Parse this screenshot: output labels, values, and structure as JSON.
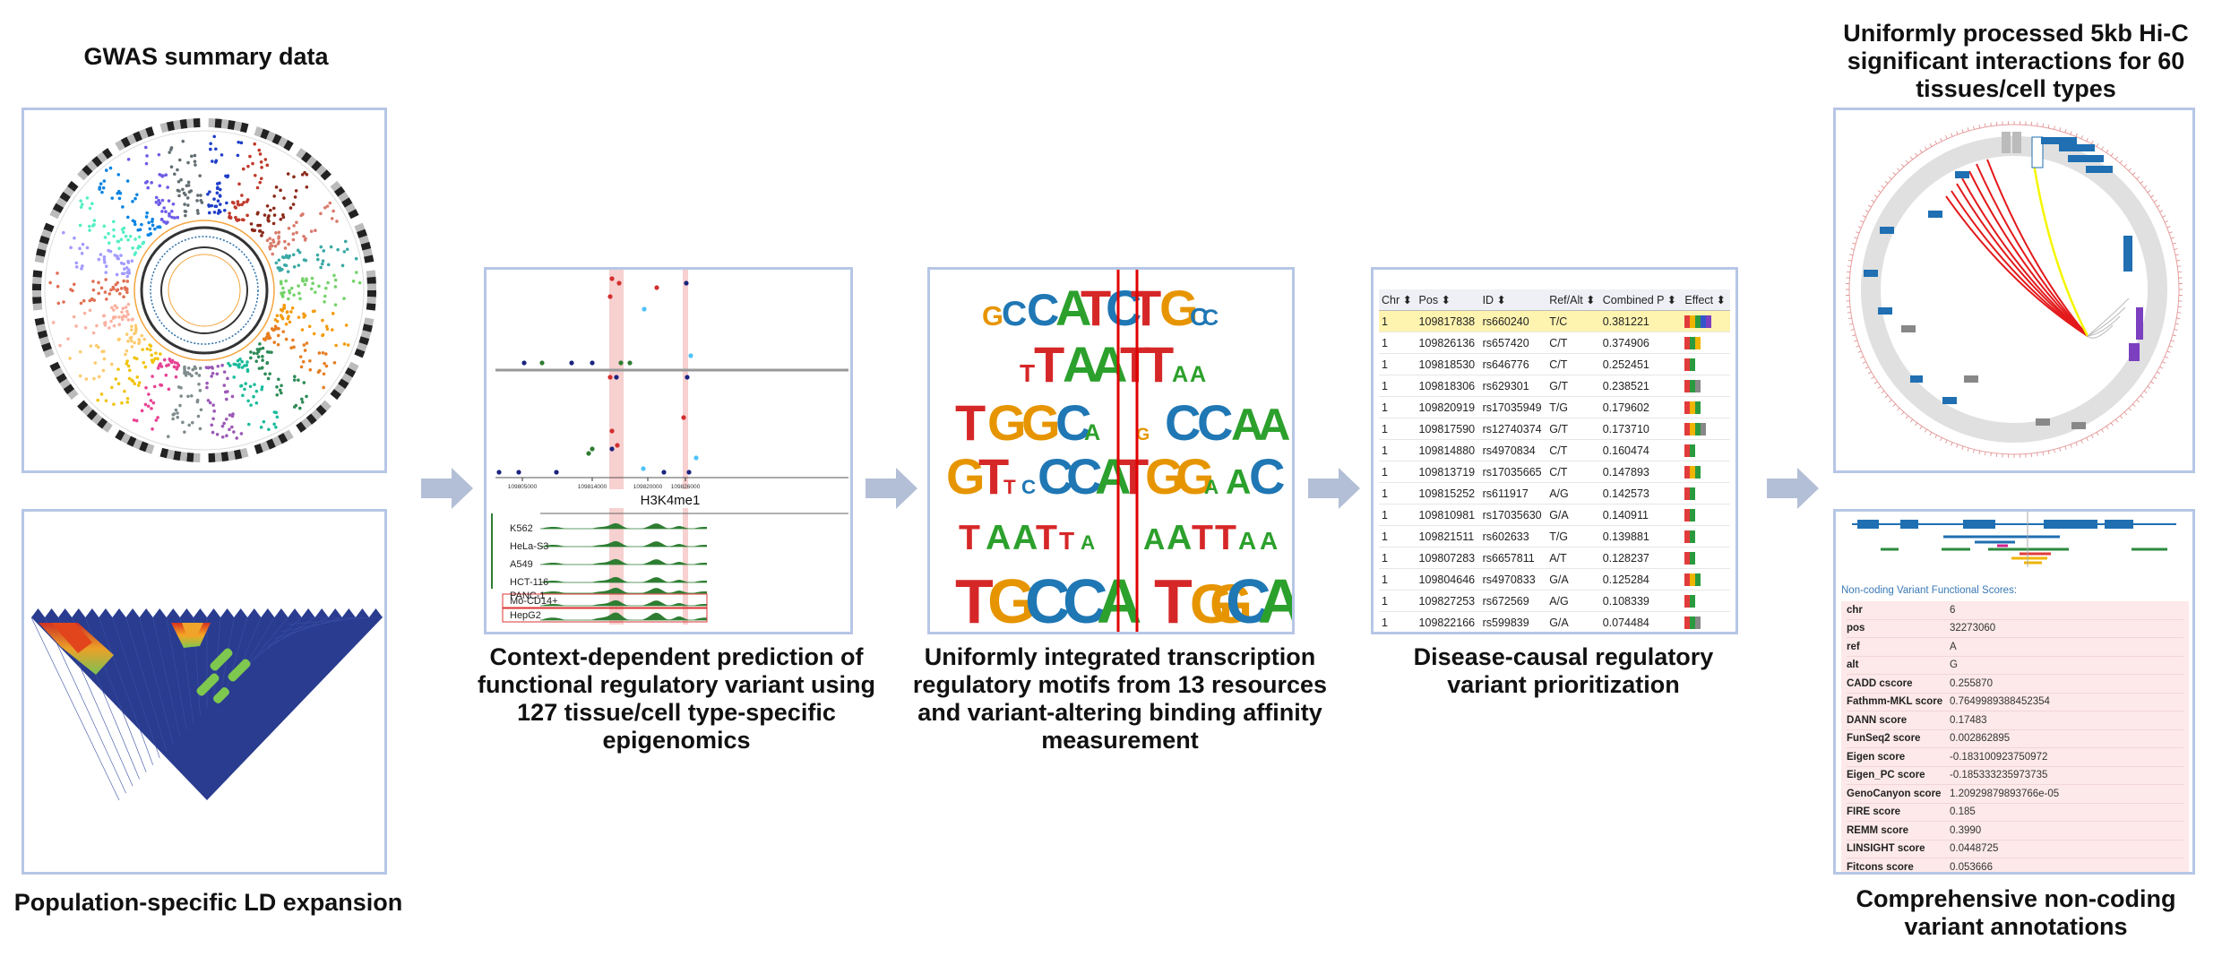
{
  "captions": {
    "gwas": "GWAS summary data",
    "ld": "Population-specific LD expansion",
    "epigenomics": [
      "Context-dependent prediction of",
      "functional regulatory variant using",
      "127 tissue/cell type-specific",
      "epigenomics"
    ],
    "motifs": [
      "Uniformly integrated transcription",
      "regulatory motifs from 13 resources",
      "and variant-altering binding affinity",
      "measurement"
    ],
    "prioritization": [
      "Disease-causal regulatory",
      "variant prioritization"
    ],
    "hic": [
      "Uniformly processed 5kb Hi-C",
      "significant interactions for 60",
      "tissues/cell types"
    ],
    "annotation": [
      "Comprehensive non-coding",
      "variant annotations"
    ]
  },
  "epigenomics_panel": {
    "mark_title": "H3K4me1",
    "axis_ticks_top": [
      "109805000",
      "109814000",
      "109820000",
      "109826000"
    ],
    "cell_lines": [
      "K562",
      "HeLa-S3",
      "A549",
      "HCT-116",
      "PANC-1",
      "Mo-CD14+",
      "HepG2"
    ]
  },
  "motif_panel": {
    "logos": [
      "GCCATCTGCC",
      "TTAATTAA",
      "TGGCA GCCAA",
      "GTTCCATGGAAC",
      "TAATTA AATTAA",
      "TGCCA TGGCA"
    ]
  },
  "variant_table": {
    "columns": [
      "Chr",
      "Pos",
      "ID",
      "Ref/Alt",
      "Combined P",
      "Effect"
    ],
    "rows": [
      [
        "1",
        "109817838",
        "rs660240",
        "T/C",
        "0.381221"
      ],
      [
        "1",
        "109826136",
        "rs657420",
        "C/T",
        "0.374906"
      ],
      [
        "1",
        "109818530",
        "rs646776",
        "C/T",
        "0.252451"
      ],
      [
        "1",
        "109818306",
        "rs629301",
        "G/T",
        "0.238521"
      ],
      [
        "1",
        "109820919",
        "rs17035949",
        "T/G",
        "0.179602"
      ],
      [
        "1",
        "109817590",
        "rs12740374",
        "G/T",
        "0.173710"
      ],
      [
        "1",
        "109814880",
        "rs4970834",
        "C/T",
        "0.160474"
      ],
      [
        "1",
        "109813719",
        "rs17035665",
        "C/T",
        "0.147893"
      ],
      [
        "1",
        "109815252",
        "rs611917",
        "A/G",
        "0.142573"
      ],
      [
        "1",
        "109810981",
        "rs17035630",
        "G/A",
        "0.140911"
      ],
      [
        "1",
        "109821511",
        "rs602633",
        "T/G",
        "0.139881"
      ],
      [
        "1",
        "109807283",
        "rs6657811",
        "A/T",
        "0.128237"
      ],
      [
        "1",
        "109804646",
        "rs4970833",
        "G/A",
        "0.125284"
      ],
      [
        "1",
        "109827253",
        "rs672569",
        "A/G",
        "0.108339"
      ],
      [
        "1",
        "109822166",
        "rs599839",
        "G/A",
        "0.074484"
      ]
    ]
  },
  "annotation_panel": {
    "title": "Non-coding Variant Functional Scores:",
    "rows": [
      [
        "chr",
        "6"
      ],
      [
        "pos",
        "32273060"
      ],
      [
        "ref",
        "A"
      ],
      [
        "alt",
        "G"
      ],
      [
        "CADD cscore",
        "0.255870"
      ],
      [
        "Fathmm-MKL score",
        "0.7649989388452354"
      ],
      [
        "DANN score",
        "0.17483"
      ],
      [
        "FunSeq2 score",
        "0.002862895"
      ],
      [
        "Eigen score",
        "-0.183100923750972"
      ],
      [
        "Eigen_PC score",
        "-0.185333235973735"
      ],
      [
        "GenoCanyon score",
        "1.20929879893766e-05"
      ],
      [
        "FIRE score",
        "0.185"
      ],
      [
        "REMM score",
        "0.3990"
      ],
      [
        "LINSIGHT score",
        "0.0448725"
      ],
      [
        "Fitcons score",
        "0.053666"
      ]
    ]
  },
  "colors": {
    "panel_border": "#b6c6e6",
    "arrow": "#b3bfd6",
    "highlight_row": "#fff3b0",
    "annotation_bg": "#fde9e9"
  }
}
